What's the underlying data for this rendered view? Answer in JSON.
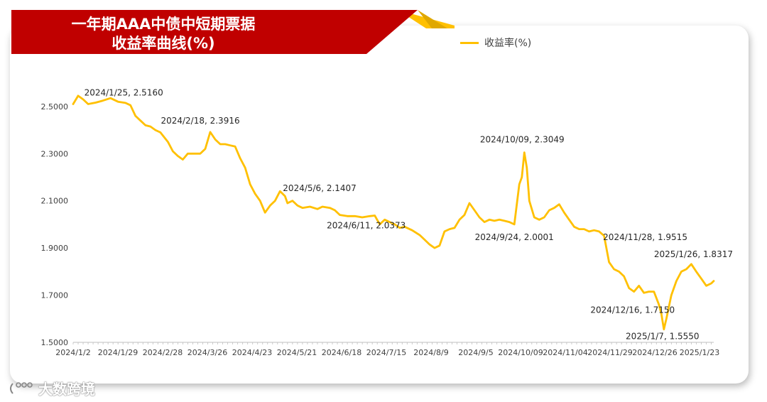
{
  "title": {
    "line1": "一年期AAA中债中短期票据",
    "line2": "收益率曲线(%)"
  },
  "legend": {
    "label": "收益率(%)"
  },
  "watermark": {
    "text": "大数跨境"
  },
  "colors": {
    "line": "#FFC000",
    "banner_red": "#C00000",
    "banner_gold": "#FFC000"
  },
  "chart_data": {
    "type": "line",
    "title": "一年期AAA中债中短期票据收益率曲线(%)",
    "legend_placement": "top-right",
    "grid": false,
    "ylim": [
      1.5,
      2.62
    ],
    "y_ticks": [
      "1.5000",
      "1.7000",
      "1.9000",
      "2.1000",
      "2.3000",
      "2.5000"
    ],
    "x_ticks": [
      "2024/1/2",
      "2024/1/29",
      "2024/2/28",
      "2024/3/26",
      "2024/4/23",
      "2024/5/21",
      "2024/6/18",
      "2024/7/15",
      "2024/8/9",
      "2024/9/5",
      "2024/10/09",
      "2024/11/04",
      "2024/11/29",
      "2024/12/26",
      "2025/1/23"
    ],
    "series": [
      {
        "name": "收益率(%)",
        "color": "#FFC000",
        "points": [
          [
            0,
            2.51
          ],
          [
            2,
            2.545
          ],
          [
            4,
            2.53
          ],
          [
            6,
            2.51
          ],
          [
            9,
            2.516
          ],
          [
            12,
            2.525
          ],
          [
            15,
            2.535
          ],
          [
            18,
            2.52
          ],
          [
            21,
            2.515
          ],
          [
            23,
            2.505
          ],
          [
            25,
            2.46
          ],
          [
            27,
            2.44
          ],
          [
            29,
            2.42
          ],
          [
            31,
            2.415
          ],
          [
            33,
            2.4
          ],
          [
            35,
            2.39
          ],
          [
            38,
            2.35
          ],
          [
            40,
            2.31
          ],
          [
            42,
            2.29
          ],
          [
            44,
            2.275
          ],
          [
            46,
            2.3
          ],
          [
            49,
            2.3
          ],
          [
            51,
            2.3
          ],
          [
            53,
            2.32
          ],
          [
            55,
            2.3916
          ],
          [
            57,
            2.36
          ],
          [
            59,
            2.34
          ],
          [
            61,
            2.34
          ],
          [
            63,
            2.335
          ],
          [
            65,
            2.33
          ],
          [
            67,
            2.28
          ],
          [
            69,
            2.24
          ],
          [
            71,
            2.17
          ],
          [
            73,
            2.13
          ],
          [
            75,
            2.1
          ],
          [
            77,
            2.05
          ],
          [
            79,
            2.08
          ],
          [
            81,
            2.1
          ],
          [
            83,
            2.1407
          ],
          [
            85,
            2.12
          ],
          [
            86,
            2.09
          ],
          [
            88,
            2.1
          ],
          [
            90,
            2.08
          ],
          [
            92,
            2.07
          ],
          [
            95,
            2.075
          ],
          [
            98,
            2.065
          ],
          [
            100,
            2.075
          ],
          [
            103,
            2.07
          ],
          [
            105,
            2.06
          ],
          [
            107,
            2.04
          ],
          [
            110,
            2.035
          ],
          [
            113,
            2.035
          ],
          [
            116,
            2.03
          ],
          [
            119,
            2.035
          ],
          [
            121,
            2.0373
          ],
          [
            123,
            2.0
          ],
          [
            125,
            2.02
          ],
          [
            127,
            2.01
          ],
          [
            129,
            2.0
          ],
          [
            131,
            1.985
          ],
          [
            133,
            1.99
          ],
          [
            136,
            1.975
          ],
          [
            139,
            1.955
          ],
          [
            141,
            1.935
          ],
          [
            143,
            1.915
          ],
          [
            145,
            1.9
          ],
          [
            147,
            1.91
          ],
          [
            149,
            1.97
          ],
          [
            151,
            1.98
          ],
          [
            153,
            1.985
          ],
          [
            155,
            2.02
          ],
          [
            157,
            2.04
          ],
          [
            159,
            2.09
          ],
          [
            161,
            2.06
          ],
          [
            163,
            2.03
          ],
          [
            165,
            2.01
          ],
          [
            167,
            2.02
          ],
          [
            169,
            2.015
          ],
          [
            171,
            2.02
          ],
          [
            173,
            2.015
          ],
          [
            175,
            2.01
          ],
          [
            177,
            2.0001
          ],
          [
            179,
            2.17
          ],
          [
            180,
            2.2
          ],
          [
            181,
            2.3049
          ],
          [
            182,
            2.24
          ],
          [
            183,
            2.1
          ],
          [
            185,
            2.03
          ],
          [
            187,
            2.02
          ],
          [
            189,
            2.03
          ],
          [
            191,
            2.06
          ],
          [
            193,
            2.07
          ],
          [
            195,
            2.085
          ],
          [
            197,
            2.05
          ],
          [
            199,
            2.02
          ],
          [
            201,
            1.99
          ],
          [
            203,
            1.98
          ],
          [
            205,
            1.98
          ],
          [
            207,
            1.97
          ],
          [
            209,
            1.975
          ],
          [
            211,
            1.97
          ],
          [
            213,
            1.9515
          ],
          [
            215,
            1.84
          ],
          [
            217,
            1.81
          ],
          [
            219,
            1.8
          ],
          [
            221,
            1.78
          ],
          [
            223,
            1.73
          ],
          [
            225,
            1.715
          ],
          [
            227,
            1.74
          ],
          [
            229,
            1.71
          ],
          [
            231,
            1.715
          ],
          [
            233,
            1.715
          ],
          [
            235,
            1.66
          ],
          [
            236,
            1.62
          ],
          [
            237,
            1.555
          ],
          [
            238,
            1.6
          ],
          [
            240,
            1.7
          ],
          [
            242,
            1.76
          ],
          [
            244,
            1.8
          ],
          [
            246,
            1.81
          ],
          [
            248,
            1.8317
          ],
          [
            250,
            1.8
          ],
          [
            252,
            1.77
          ],
          [
            254,
            1.74
          ],
          [
            256,
            1.75
          ],
          [
            257,
            1.76
          ]
        ]
      }
    ],
    "annotations": [
      {
        "text": "2024/1/25, 2.5160",
        "i": 9
      },
      {
        "text": "2024/2/18, 2.3916",
        "i": 55
      },
      {
        "text": "2024/5/6, 2.1407",
        "i": 83
      },
      {
        "text": "2024/6/11, 2.0373",
        "i": 121
      },
      {
        "text": "2024/9/24, 2.0001",
        "i": 177
      },
      {
        "text": "2024/10/09, 2.3049",
        "i": 181
      },
      {
        "text": "2024/11/28, 1.9515",
        "i": 213
      },
      {
        "text": "2024/12/16, 1.7150",
        "i": 233
      },
      {
        "text": "2025/1/7, 1.5550",
        "i": 237
      },
      {
        "text": "2025/1/26, 1.8317",
        "i": 248
      }
    ]
  }
}
